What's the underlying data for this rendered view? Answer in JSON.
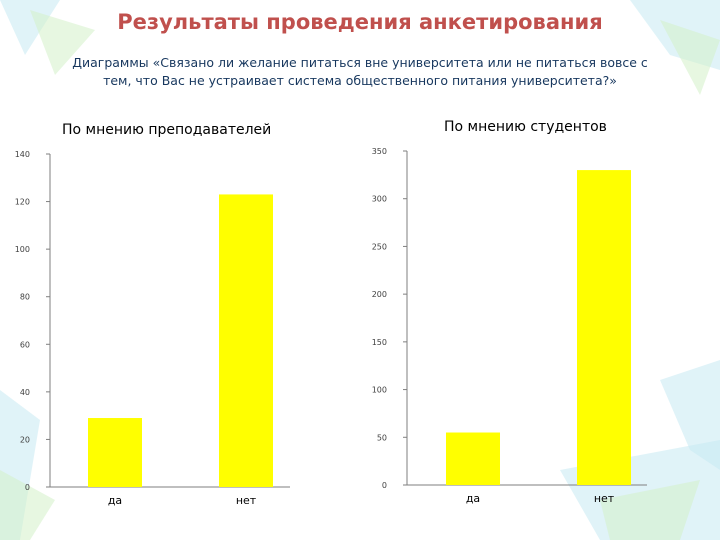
{
  "slide": {
    "title": "Результаты проведения анкетирования",
    "subtitle_line1": "Диаграммы «Связано ли желание питаться вне университета или не питаться вовсе с",
    "subtitle_line2": "тем, что Вас не устраивает система общественного питания университета?»"
  },
  "colors": {
    "bar": "#ffff00",
    "title": "#c0504d",
    "subtitle": "#17375e",
    "axis": "#7f7f7f"
  },
  "chart_data": [
    {
      "type": "bar",
      "title": "По мнению преподавателей",
      "categories": [
        "да",
        "нет"
      ],
      "values": [
        29,
        123
      ],
      "ylim": [
        0,
        140
      ],
      "yticks": [
        0,
        20,
        40,
        60,
        80,
        100,
        120,
        140
      ],
      "grid": false,
      "legend": "none"
    },
    {
      "type": "bar",
      "title": "По мнению студентов",
      "categories": [
        "да",
        "нет"
      ],
      "values": [
        55,
        330
      ],
      "ylim": [
        0,
        350
      ],
      "yticks": [
        0,
        50,
        100,
        150,
        200,
        250,
        300,
        350
      ],
      "grid": false,
      "legend": "none"
    }
  ]
}
